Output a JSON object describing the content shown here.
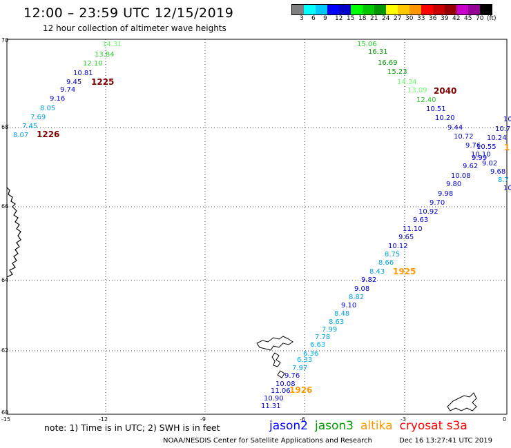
{
  "header": {
    "title": "12:00 – 23:59 UTC 12/15/2019",
    "subtitle": "12 hour collection of altimeter wave heights"
  },
  "legend": {
    "colors": [
      "#7f7f7f",
      "#00ffff",
      "#00c8ff",
      "#0000ff",
      "#0000c8",
      "#00ff00",
      "#00c800",
      "#009600",
      "#ffff00",
      "#ffc800",
      "#ff9600",
      "#ff0000",
      "#c80000",
      "#960000",
      "#c800c8",
      "#960096",
      "#000000"
    ],
    "labels": [
      "3",
      "6",
      "9",
      "12",
      "15",
      "18",
      "21",
      "24",
      "27",
      "30",
      "33",
      "36",
      "39",
      "42",
      "45",
      "70",
      "(ft)"
    ]
  },
  "map": {
    "lat_ticks": [
      "70",
      "68",
      "66",
      "64",
      "62",
      "60"
    ],
    "lon_ticks": [
      "-15",
      "-12",
      "-9",
      "-6",
      "-3",
      "0"
    ],
    "times": [
      {
        "text": "1225",
        "color": "#800000"
      },
      {
        "text": "1226",
        "color": "#800000"
      },
      {
        "text": "2040",
        "color": "#800000"
      },
      {
        "text": "1925",
        "color": "#ff9900"
      },
      {
        "text": "1926",
        "color": "#ff9900"
      },
      {
        "text": "1",
        "color": "#ff9900"
      }
    ],
    "track_west": [
      {
        "v": "14.31",
        "c": "#66ff66"
      },
      {
        "v": "13.84",
        "c": "#22cc22"
      },
      {
        "v": "12.10",
        "c": "#22cc22"
      },
      {
        "v": "10.81",
        "c": "#0000cc"
      },
      {
        "v": "9.45",
        "c": "#0000aa"
      },
      {
        "v": "9.74",
        "c": "#0000cc"
      },
      {
        "v": "9.16",
        "c": "#0000cc"
      },
      {
        "v": "8.05",
        "c": "#00a0e0"
      },
      {
        "v": "7.69",
        "c": "#00a0e0"
      },
      {
        "v": "7.45",
        "c": "#00a0e0"
      },
      {
        "v": "8.07",
        "c": "#00a0e0"
      }
    ],
    "track_east_upper": [
      {
        "v": "15.06",
        "c": "#22cc22"
      },
      {
        "v": "16.31",
        "c": "#009900"
      },
      {
        "v": "16.69",
        "c": "#009900"
      },
      {
        "v": "15.23",
        "c": "#009900"
      },
      {
        "v": "14.34",
        "c": "#66ff66"
      },
      {
        "v": "13.09",
        "c": "#66ff66"
      },
      {
        "v": "12.40",
        "c": "#22cc22"
      },
      {
        "v": "10.51",
        "c": "#0000cc"
      },
      {
        "v": "10.20",
        "c": "#0000cc"
      },
      {
        "v": "9.44",
        "c": "#0000cc"
      },
      {
        "v": "10.72",
        "c": "#0000cc"
      },
      {
        "v": "9.76",
        "c": "#0000cc"
      },
      {
        "v": "10.55",
        "c": "#0000cc"
      },
      {
        "v": "10.10",
        "c": "#0000cc"
      },
      {
        "v": "9.99",
        "c": "#0000cc"
      },
      {
        "v": "9.02",
        "c": "#0000cc"
      },
      {
        "v": "9.62",
        "c": "#0000cc"
      },
      {
        "v": "10",
        "c": "#0000cc"
      },
      {
        "v": "10.7",
        "c": "#0000cc"
      },
      {
        "v": "10.24",
        "c": "#0000cc"
      },
      {
        "v": "9.68",
        "c": "#0000cc"
      },
      {
        "v": "8.7",
        "c": "#00a0e0"
      },
      {
        "v": "10",
        "c": "#0000cc"
      }
    ],
    "track_east_lower": [
      {
        "v": "10.08",
        "c": "#0000cc"
      },
      {
        "v": "9.80",
        "c": "#0000cc"
      },
      {
        "v": "9.98",
        "c": "#0000cc"
      },
      {
        "v": "9.70",
        "c": "#0000cc"
      },
      {
        "v": "10.92",
        "c": "#0000cc"
      },
      {
        "v": "9.63",
        "c": "#0000cc"
      },
      {
        "v": "11.10",
        "c": "#0000cc"
      },
      {
        "v": "9.65",
        "c": "#0000cc"
      },
      {
        "v": "10.12",
        "c": "#0000cc"
      },
      {
        "v": "8.75",
        "c": "#00a0e0"
      },
      {
        "v": "8.66",
        "c": "#00a0e0"
      },
      {
        "v": "8.43",
        "c": "#00a0e0"
      },
      {
        "v": "9.82",
        "c": "#0000cc"
      },
      {
        "v": "9.08",
        "c": "#0000cc"
      },
      {
        "v": "8.82",
        "c": "#00a0e0"
      },
      {
        "v": "9.10",
        "c": "#0000cc"
      },
      {
        "v": "8.48",
        "c": "#00a0e0"
      },
      {
        "v": "8.63",
        "c": "#00a0e0"
      },
      {
        "v": "7.99",
        "c": "#00a0e0"
      },
      {
        "v": "7.78",
        "c": "#00a0e0"
      },
      {
        "v": "6.63",
        "c": "#00b0e8"
      },
      {
        "v": "6.36",
        "c": "#00b0e8"
      },
      {
        "v": "6.33",
        "c": "#00b0e8"
      },
      {
        "v": "7.97",
        "c": "#00a0e0"
      },
      {
        "v": "9.76",
        "c": "#0000cc"
      },
      {
        "v": "10.08",
        "c": "#0000cc"
      },
      {
        "v": "11.06",
        "c": "#0000cc"
      },
      {
        "v": "10.90",
        "c": "#0000cc"
      },
      {
        "v": "11.31",
        "c": "#0000cc"
      }
    ]
  },
  "footer": {
    "note": "note: 1) Time is in UTC; 2) SWH is in feet",
    "satellites": [
      {
        "name": "jason2",
        "color": "#0000ff"
      },
      {
        "name": "jason3",
        "color": "#009900"
      },
      {
        "name": "altika",
        "color": "#ff9900"
      },
      {
        "name": "cryosat s3a",
        "color": "#ff0000"
      }
    ],
    "credit": "NOAA/NESDIS Center for Satellite Applications and Research",
    "timestamp": "Dec 16 13:27:41 UTC 2019"
  }
}
